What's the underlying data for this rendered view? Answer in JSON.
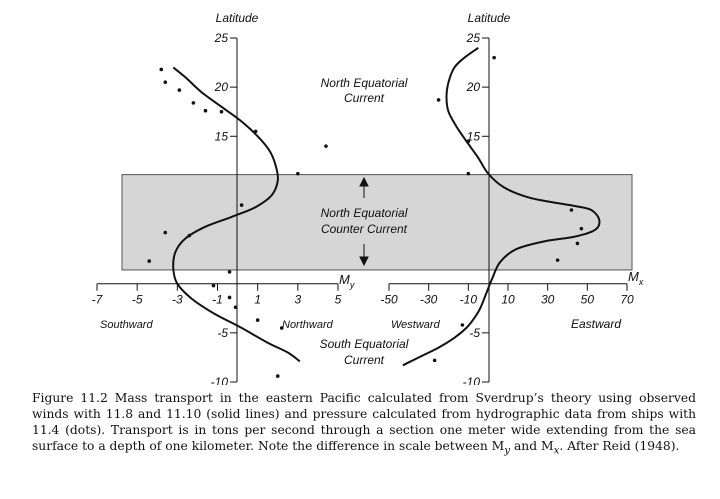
{
  "chart_data": [
    {
      "type": "scatter",
      "panel": "My",
      "ylabel": "Latitude",
      "xlabel": "M",
      "xlabel_sub": "y",
      "xlim": [
        -7,
        5
      ],
      "ylim": [
        -10,
        25
      ],
      "x_ticks": [
        "-7",
        "-5",
        "-3",
        "-1",
        "1",
        "3",
        "5"
      ],
      "y_ticks": [
        "25",
        "20",
        "15",
        "-5",
        "-10"
      ],
      "dir_left": "Southward",
      "dir_right": "Northward",
      "series": [
        {
          "style": "solid line",
          "x": [
            -3.2,
            -2.6,
            -1.8,
            -0.8,
            0.2,
            1.0,
            1.6,
            1.9,
            2.0,
            1.7,
            0.9,
            -0.3,
            -1.6,
            -2.6,
            -3.1,
            -3.2,
            -3.0,
            -2.3,
            -1.2,
            0.2,
            1.5,
            2.5,
            3.1
          ],
          "y": [
            22,
            21,
            19.5,
            18,
            16.5,
            15,
            13.5,
            12,
            10.5,
            9,
            7.8,
            6.8,
            5.8,
            4.6,
            3.2,
            1.5,
            0,
            -1.5,
            -3,
            -4.5,
            -6,
            -7,
            -7.9
          ]
        },
        {
          "style": "dots",
          "x": [
            -3.8,
            -3.6,
            -2.9,
            -2.2,
            -1.6,
            -0.8,
            0.9,
            3.0,
            4.4,
            0.2,
            -3.6,
            -2.4,
            -4.4,
            -0.4,
            -1.2,
            -0.4,
            -0.1,
            1.0,
            2.2,
            2.0
          ],
          "y": [
            21.8,
            20.5,
            19.7,
            18.4,
            17.6,
            17.5,
            15.5,
            11.2,
            14.0,
            8.0,
            5.2,
            4.9,
            2.3,
            1.2,
            -0.2,
            -1.4,
            -2.4,
            -3.7,
            -4.5,
            -9.4
          ]
        }
      ]
    },
    {
      "type": "scatter",
      "panel": "Mx",
      "ylabel": "Latitude",
      "xlabel": "M",
      "xlabel_sub": "x",
      "xlim": [
        -50,
        70
      ],
      "ylim": [
        -10,
        25
      ],
      "x_ticks": [
        "-50",
        "-30",
        "-10",
        "10",
        "30",
        "50",
        "70"
      ],
      "y_ticks": [
        "25",
        "20",
        "15",
        "-5",
        "-10"
      ],
      "dir_left": "Westward",
      "dir_right": "Eastward",
      "series": [
        {
          "style": "solid line",
          "x": [
            -5,
            -12,
            -17,
            -20,
            -21,
            -20,
            -16,
            -11,
            -5,
            0,
            8,
            20,
            32,
            44,
            52,
            56,
            54,
            44,
            28,
            14,
            6,
            2,
            -1,
            -4,
            -7,
            -11,
            -17,
            -25,
            -33,
            -40,
            -43
          ],
          "y": [
            24,
            23,
            22,
            20.5,
            19,
            17.5,
            16,
            14.5,
            12.8,
            11.2,
            9.8,
            8.8,
            8.3,
            7.9,
            7.5,
            6.5,
            5.5,
            4.8,
            4.3,
            3.5,
            2.2,
            0.5,
            -1,
            -2.5,
            -3.5,
            -4.5,
            -5.5,
            -6.5,
            -7.3,
            -8,
            -8.3
          ]
        },
        {
          "style": "dots",
          "x": [
            3,
            -25,
            -10,
            -10,
            42,
            47,
            45,
            35,
            -13,
            -27
          ],
          "y": [
            23,
            18.7,
            14.5,
            11.2,
            7.5,
            5.6,
            4.1,
            2.4,
            -4.2,
            -7.8
          ]
        }
      ]
    }
  ],
  "annotations": {
    "north_equatorial_current": [
      "North Equatorial",
      "Current"
    ],
    "north_equatorial_counter_current": [
      "North Equatorial",
      "Counter Current"
    ],
    "south_equatorial_current": [
      "South Equatorial",
      "Current"
    ]
  },
  "band": {
    "lat_bottom": 1.4,
    "lat_top": 11.1,
    "fill": "#d6d6d6",
    "stroke": "#555555"
  },
  "colors": {
    "ink": "#111111"
  },
  "caption": "Figure 11.2 Mass transport in the eastern Pacific calculated from Sverdrup’s theory using observed winds with 11.8 and 11.10 (solid lines) and pressure calculated from hydrographic data from ships with 11.4 (dots). Transport is in tons per second through a section one meter wide extending from the sea surface to a depth of one kilometer. Note the difference in scale between M",
  "caption_sub_y": "y",
  "caption_and": " and M",
  "caption_sub_x": "x",
  "caption_end": ". After Reid (1948)."
}
